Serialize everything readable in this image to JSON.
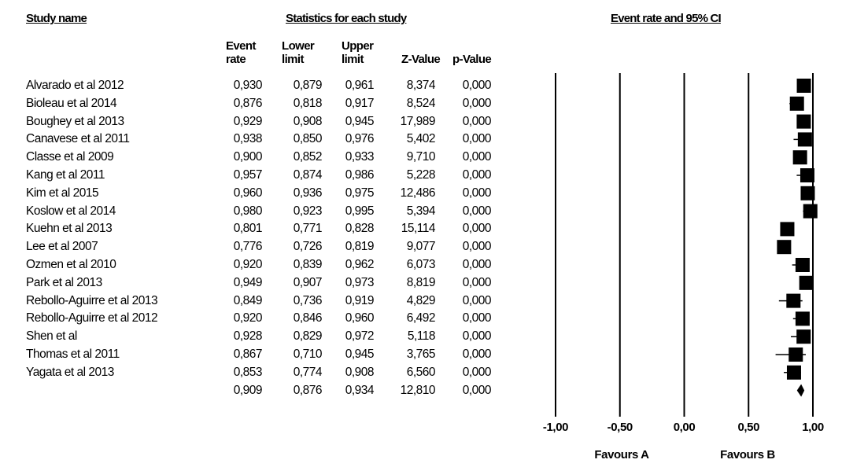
{
  "headers": {
    "study_name": "Study name",
    "statistics": "Statistics for each study",
    "event_rate_ci": "Event rate and 95% CI"
  },
  "columns": [
    {
      "line1": "Event",
      "line2": "rate"
    },
    {
      "line1": "Lower",
      "line2": "limit"
    },
    {
      "line1": "Upper",
      "line2": "limit"
    },
    {
      "line1": "",
      "line2": "Z-Value"
    },
    {
      "line1": "",
      "line2": "p-Value"
    }
  ],
  "chart_data": {
    "type": "forest",
    "xlim": [
      -1.0,
      1.0
    ],
    "xticks": [
      "-1,00",
      "-0,50",
      "0,00",
      "0,50",
      "1,00"
    ],
    "xtick_values": [
      -1.0,
      -0.5,
      0.0,
      0.5,
      1.0
    ],
    "left_label": "Favours A",
    "right_label": "Favours B",
    "studies": [
      {
        "name": "Alvarado et al 2012",
        "rate": "0,930",
        "lower": "0,879",
        "upper": "0,961",
        "z": "8,374",
        "p": "0,000",
        "r": 0.93,
        "lo": 0.879,
        "hi": 0.961
      },
      {
        "name": "Bioleau et al 2014",
        "rate": "0,876",
        "lower": "0,818",
        "upper": "0,917",
        "z": "8,524",
        "p": "0,000",
        "r": 0.876,
        "lo": 0.818,
        "hi": 0.917
      },
      {
        "name": "Boughey et al 2013",
        "rate": "0,929",
        "lower": "0,908",
        "upper": "0,945",
        "z": "17,989",
        "p": "0,000",
        "r": 0.929,
        "lo": 0.908,
        "hi": 0.945
      },
      {
        "name": "Canavese et al 2011",
        "rate": "0,938",
        "lower": "0,850",
        "upper": "0,976",
        "z": "5,402",
        "p": "0,000",
        "r": 0.938,
        "lo": 0.85,
        "hi": 0.976
      },
      {
        "name": "Classe et al 2009",
        "rate": "0,900",
        "lower": "0,852",
        "upper": "0,933",
        "z": "9,710",
        "p": "0,000",
        "r": 0.9,
        "lo": 0.852,
        "hi": 0.933
      },
      {
        "name": "Kang et al 2011",
        "rate": "0,957",
        "lower": "0,874",
        "upper": "0,986",
        "z": "5,228",
        "p": "0,000",
        "r": 0.957,
        "lo": 0.874,
        "hi": 0.986
      },
      {
        "name": "Kim et al 2015",
        "rate": "0,960",
        "lower": "0,936",
        "upper": "0,975",
        "z": "12,486",
        "p": "0,000",
        "r": 0.96,
        "lo": 0.936,
        "hi": 0.975
      },
      {
        "name": "Koslow et al 2014",
        "rate": "0,980",
        "lower": "0,923",
        "upper": "0,995",
        "z": "5,394",
        "p": "0,000",
        "r": 0.98,
        "lo": 0.923,
        "hi": 0.995
      },
      {
        "name": "Kuehn et al 2013",
        "rate": "0,801",
        "lower": "0,771",
        "upper": "0,828",
        "z": "15,114",
        "p": "0,000",
        "r": 0.801,
        "lo": 0.771,
        "hi": 0.828
      },
      {
        "name": "Lee et al 2007",
        "rate": "0,776",
        "lower": "0,726",
        "upper": "0,819",
        "z": "9,077",
        "p": "0,000",
        "r": 0.776,
        "lo": 0.726,
        "hi": 0.819
      },
      {
        "name": "Ozmen et al 2010",
        "rate": "0,920",
        "lower": "0,839",
        "upper": "0,962",
        "z": "6,073",
        "p": "0,000",
        "r": 0.92,
        "lo": 0.839,
        "hi": 0.962
      },
      {
        "name": "Park et al 2013",
        "rate": "0,949",
        "lower": "0,907",
        "upper": "0,973",
        "z": "8,819",
        "p": "0,000",
        "r": 0.949,
        "lo": 0.907,
        "hi": 0.973
      },
      {
        "name": "Rebollo-Aguirre et al 2013",
        "rate": "0,849",
        "lower": "0,736",
        "upper": "0,919",
        "z": "4,829",
        "p": "0,000",
        "r": 0.849,
        "lo": 0.736,
        "hi": 0.919
      },
      {
        "name": "Rebollo-Aguirre et al 2012",
        "rate": "0,920",
        "lower": "0,846",
        "upper": "0,960",
        "z": "6,492",
        "p": "0,000",
        "r": 0.92,
        "lo": 0.846,
        "hi": 0.96
      },
      {
        "name": "Shen et al",
        "rate": "0,928",
        "lower": "0,829",
        "upper": "0,972",
        "z": "5,118",
        "p": "0,000",
        "r": 0.928,
        "lo": 0.829,
        "hi": 0.972
      },
      {
        "name": "Thomas et al 2011",
        "rate": "0,867",
        "lower": "0,710",
        "upper": "0,945",
        "z": "3,765",
        "p": "0,000",
        "r": 0.867,
        "lo": 0.71,
        "hi": 0.945
      },
      {
        "name": "Yagata et al 2013",
        "rate": "0,853",
        "lower": "0,774",
        "upper": "0,908",
        "z": "6,560",
        "p": "0,000",
        "r": 0.853,
        "lo": 0.774,
        "hi": 0.908
      }
    ],
    "summary": {
      "name": "",
      "rate": "0,909",
      "lower": "0,876",
      "upper": "0,934",
      "z": "12,810",
      "p": "0,000",
      "r": 0.909,
      "lo": 0.876,
      "hi": 0.934
    }
  }
}
